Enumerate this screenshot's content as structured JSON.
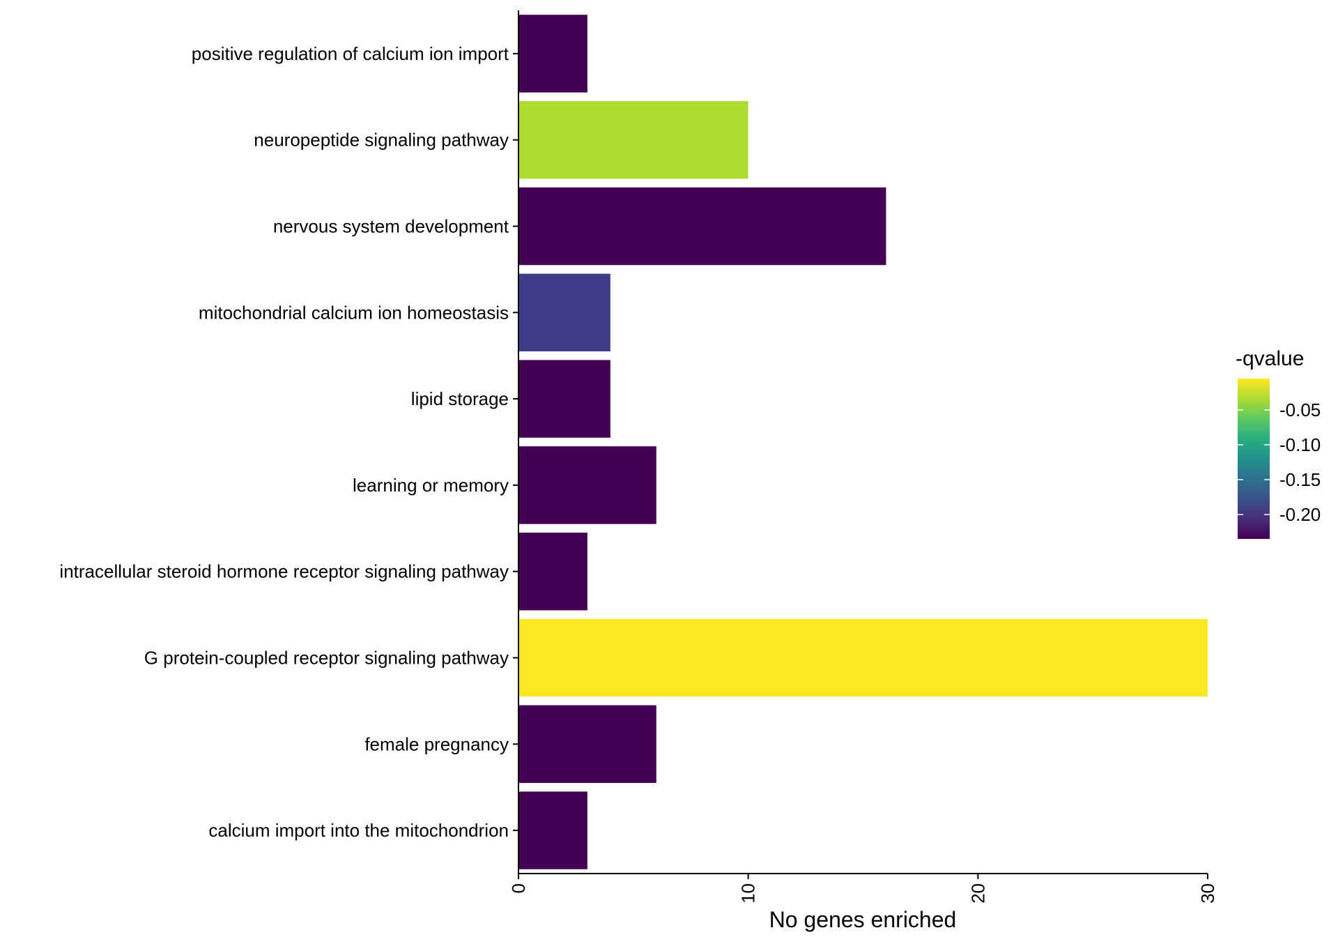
{
  "chart_data": {
    "type": "bar",
    "orientation": "horizontal",
    "categories": [
      "positive regulation of calcium ion import",
      "neuropeptide signaling pathway",
      "nervous system development",
      "mitochondrial calcium ion homeostasis",
      "lipid storage",
      "learning or memory",
      "intracellular steroid hormone receptor signaling pathway",
      "G protein-coupled receptor signaling pathway",
      "female pregnancy",
      "calcium import into the mitochondrion"
    ],
    "values": [
      3,
      10,
      16,
      4,
      4,
      6,
      3,
      30,
      6,
      3
    ],
    "colors": [
      "#440154",
      "#addc30",
      "#440154",
      "#3e3c8a",
      "#440154",
      "#440154",
      "#440154",
      "#fde725",
      "#440154",
      "#440154"
    ],
    "xlabel": "No genes enriched",
    "ylabel": "",
    "xlim": [
      0,
      30
    ],
    "xticks": [
      "0",
      "10",
      "20",
      "30"
    ],
    "xtick_values": [
      0,
      10,
      20,
      30
    ],
    "grid": false,
    "legend": {
      "title": "-qvalue",
      "placement": "right",
      "colormap": "viridis",
      "labels": [
        "-0.05",
        "-0.10",
        "-0.15",
        "-0.20"
      ],
      "label_values": [
        -0.05,
        -0.1,
        -0.15,
        -0.2
      ],
      "range": [
        -0.235,
        -0.005
      ]
    }
  }
}
